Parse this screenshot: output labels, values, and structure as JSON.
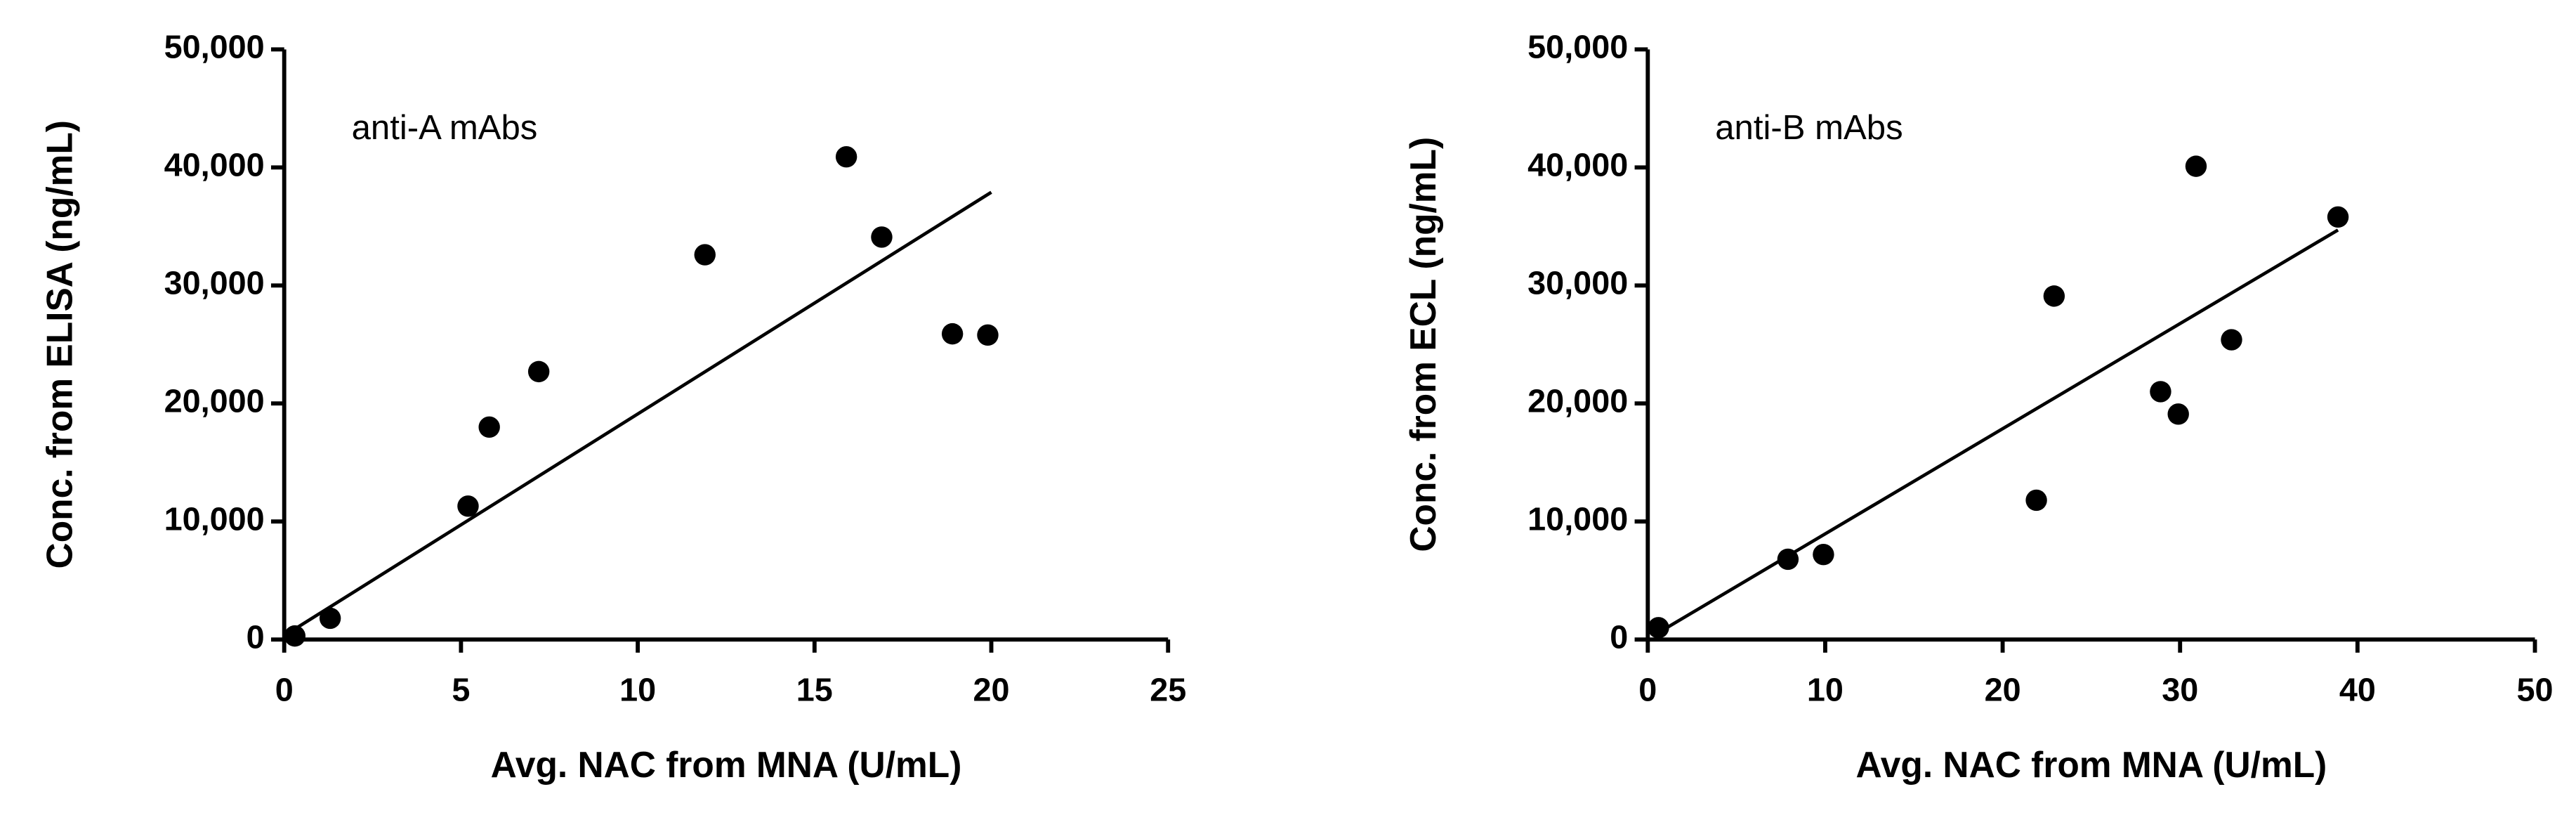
{
  "chart_data": [
    {
      "type": "scatter",
      "annotation": "anti-A mAbs",
      "xlabel": "Avg. NAC from MNA (U/mL)",
      "ylabel": "Conc. from ELISA (ng/mL)",
      "color": "#000000",
      "x": [
        0.3,
        1.3,
        5.2,
        5.8,
        7.2,
        11.9,
        15.9,
        16.9,
        18.9,
        19.9
      ],
      "values": [
        300,
        1800,
        11300,
        18000,
        22700,
        32600,
        40900,
        34100,
        25900,
        25800
      ],
      "fit": {
        "x": [
          0.2,
          20
        ],
        "values": [
          700,
          37900
        ]
      },
      "xlim": [
        0,
        25
      ],
      "xticks": [
        0,
        5,
        10,
        15,
        20,
        25
      ],
      "ylim": [
        0,
        50000
      ],
      "yticks": [
        0,
        {
          "value": 10000,
          "label": "10,000"
        },
        {
          "value": 20000,
          "label": "20,000"
        },
        {
          "value": 30000,
          "label": "30,000"
        },
        {
          "value": 40000,
          "label": "40,000"
        },
        {
          "value": 50000,
          "label": "50,000"
        }
      ]
    },
    {
      "type": "scatter",
      "annotation": "anti-B mAbs",
      "xlabel": "Avg. NAC from MNA (U/mL)",
      "ylabel": "Conc. from ECL (ng/mL)",
      "color": "#000000",
      "x": [
        0.6,
        7.9,
        9.9,
        21.9,
        22.9,
        28.9,
        29.9,
        30.9,
        32.9,
        38.9
      ],
      "values": [
        1000,
        6800,
        7200,
        11800,
        29100,
        21000,
        19100,
        40100,
        25400,
        35800
      ],
      "fit": {
        "x": [
          0.4,
          38.9
        ],
        "values": [
          400,
          34700
        ]
      },
      "xlim": [
        0,
        50
      ],
      "xticks": [
        0,
        10,
        20,
        30,
        40,
        50
      ],
      "ylim": [
        0,
        50000
      ],
      "yticks": [
        0,
        {
          "value": 10000,
          "label": "10,000"
        },
        {
          "value": 20000,
          "label": "20,000"
        },
        {
          "value": 30000,
          "label": "30,000"
        },
        {
          "value": 40000,
          "label": "40,000"
        },
        {
          "value": 50000,
          "label": "50,000"
        }
      ]
    }
  ]
}
